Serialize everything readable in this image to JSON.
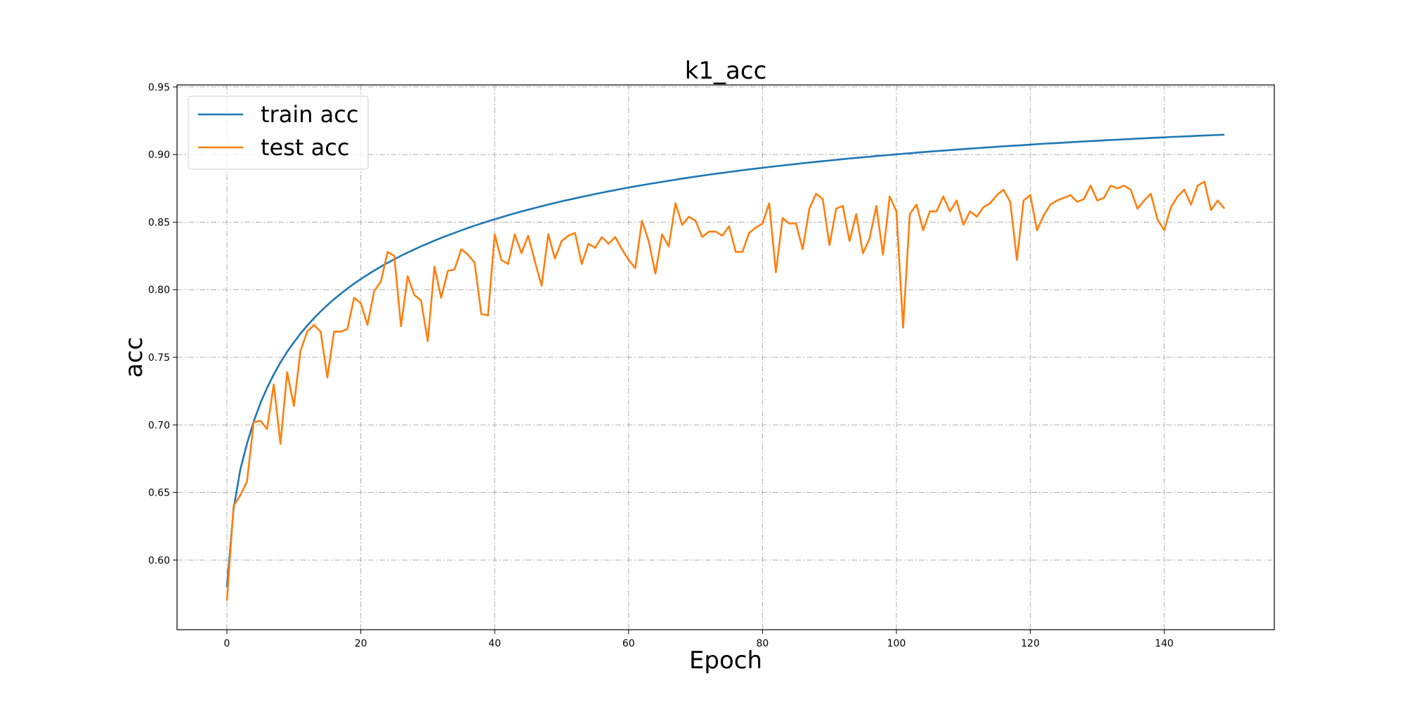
{
  "chart_data": {
    "type": "line",
    "title": "k1_acc",
    "xlabel": "Epoch",
    "ylabel": "acc",
    "xlim": [
      -7.45,
      156.45
    ],
    "ylim": [
      0.5485,
      0.9515
    ],
    "xticks": [
      0,
      20,
      40,
      60,
      80,
      100,
      120,
      140
    ],
    "yticks": [
      0.6,
      0.65,
      0.7,
      0.75,
      0.8,
      0.85,
      0.9,
      0.95
    ],
    "grid": true,
    "legend_position": "top-left",
    "series": [
      {
        "name": "train acc",
        "color": "#1f77b4",
        "values": [
          0.5802,
          0.6378,
          0.6669,
          0.6862,
          0.7025,
          0.7161,
          0.7274,
          0.7374,
          0.7462,
          0.7541,
          0.7611,
          0.7676,
          0.7735,
          0.7789,
          0.7839,
          0.7886,
          0.793,
          0.797,
          0.8009,
          0.8045,
          0.8079,
          0.8111,
          0.8142,
          0.8171,
          0.8199,
          0.8225,
          0.8251,
          0.8275,
          0.8298,
          0.8321,
          0.8342,
          0.8363,
          0.8383,
          0.8402,
          0.8421,
          0.8439,
          0.8457,
          0.8474,
          0.849,
          0.8506,
          0.8521,
          0.8536,
          0.8551,
          0.8565,
          0.8579,
          0.8592,
          0.8605,
          0.8618,
          0.863,
          0.8642,
          0.8654,
          0.8665,
          0.8676,
          0.8687,
          0.8697,
          0.8708,
          0.8718,
          0.8728,
          0.8737,
          0.8747,
          0.8756,
          0.8765,
          0.8773,
          0.8782,
          0.879,
          0.8798,
          0.8806,
          0.8814,
          0.8822,
          0.8829,
          0.8837,
          0.8844,
          0.8851,
          0.8858,
          0.8864,
          0.8871,
          0.8877,
          0.8884,
          0.889,
          0.8896,
          0.8902,
          0.8908,
          0.8914,
          0.8919,
          0.8925,
          0.893,
          0.8936,
          0.8941,
          0.8946,
          0.8951,
          0.8956,
          0.8961,
          0.8966,
          0.8971,
          0.8975,
          0.898,
          0.8984,
          0.8989,
          0.8993,
          0.8997,
          0.9002,
          0.9006,
          0.901,
          0.9014,
          0.9018,
          0.9022,
          0.9026,
          0.9029,
          0.9033,
          0.9037,
          0.904,
          0.9044,
          0.9047,
          0.9051,
          0.9054,
          0.9058,
          0.9061,
          0.9064,
          0.9067,
          0.907,
          0.9073,
          0.9077,
          0.908,
          0.9083,
          0.9085,
          0.9088,
          0.9091,
          0.9094,
          0.9097,
          0.91,
          0.9102,
          0.9105,
          0.9108,
          0.911,
          0.9113,
          0.9115,
          0.9118,
          0.912,
          0.9123,
          0.9125,
          0.9127,
          0.913,
          0.9132,
          0.9134,
          0.9136,
          0.9139,
          0.9141,
          0.9143,
          0.9145,
          0.9147
        ]
      },
      {
        "name": "test acc",
        "color": "#ff7f0e",
        "values": [
          0.57,
          0.64,
          0.648,
          0.658,
          0.702,
          0.703,
          0.697,
          0.73,
          0.686,
          0.739,
          0.714,
          0.755,
          0.769,
          0.774,
          0.769,
          0.735,
          0.769,
          0.769,
          0.771,
          0.794,
          0.79,
          0.774,
          0.799,
          0.806,
          0.828,
          0.825,
          0.773,
          0.81,
          0.796,
          0.792,
          0.762,
          0.817,
          0.794,
          0.814,
          0.815,
          0.83,
          0.826,
          0.82,
          0.782,
          0.781,
          0.841,
          0.822,
          0.819,
          0.841,
          0.827,
          0.84,
          0.821,
          0.803,
          0.841,
          0.823,
          0.836,
          0.84,
          0.842,
          0.819,
          0.834,
          0.831,
          0.839,
          0.834,
          0.839,
          0.83,
          0.822,
          0.816,
          0.851,
          0.836,
          0.812,
          0.841,
          0.832,
          0.864,
          0.848,
          0.854,
          0.851,
          0.839,
          0.843,
          0.843,
          0.84,
          0.847,
          0.828,
          0.828,
          0.842,
          0.846,
          0.849,
          0.864,
          0.813,
          0.853,
          0.849,
          0.849,
          0.83,
          0.86,
          0.871,
          0.867,
          0.833,
          0.86,
          0.862,
          0.836,
          0.856,
          0.827,
          0.838,
          0.862,
          0.826,
          0.869,
          0.858,
          0.772,
          0.856,
          0.863,
          0.844,
          0.858,
          0.858,
          0.869,
          0.858,
          0.866,
          0.848,
          0.858,
          0.854,
          0.861,
          0.864,
          0.87,
          0.874,
          0.865,
          0.822,
          0.866,
          0.87,
          0.844,
          0.855,
          0.863,
          0.866,
          0.868,
          0.87,
          0.865,
          0.867,
          0.877,
          0.866,
          0.868,
          0.877,
          0.875,
          0.877,
          0.874,
          0.86,
          0.866,
          0.871,
          0.852,
          0.844,
          0.861,
          0.869,
          0.874,
          0.863,
          0.877,
          0.88,
          0.859,
          0.866,
          0.86
        ]
      }
    ]
  }
}
